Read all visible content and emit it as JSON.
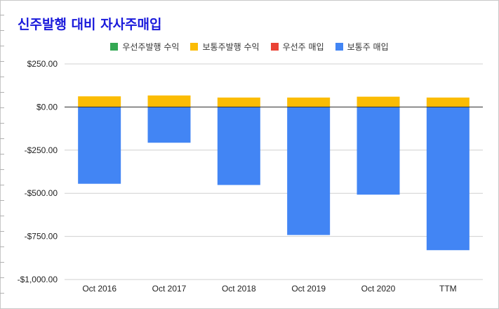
{
  "chart_data": {
    "type": "bar",
    "title": "신주발행 대비 자사주매입",
    "categories": [
      "Oct 2016",
      "Oct 2017",
      "Oct 2018",
      "Oct 2019",
      "Oct 2020",
      "TTM"
    ],
    "series": [
      {
        "name": "우선주발행 수익",
        "color": "#34a853",
        "values": [
          0,
          0,
          0,
          0,
          0,
          0
        ]
      },
      {
        "name": "보통주발행 수익",
        "color": "#fbbc04",
        "values": [
          62,
          67,
          55,
          55,
          60,
          55
        ]
      },
      {
        "name": "우선주 매입",
        "color": "#ea4335",
        "values": [
          0,
          0,
          0,
          0,
          0,
          0
        ]
      },
      {
        "name": "보통주 매입",
        "color": "#4285f4",
        "values": [
          -445,
          -207,
          -452,
          -742,
          -508,
          -830
        ]
      }
    ],
    "y_ticks": [
      250,
      0,
      -250,
      -500,
      -750,
      -1000
    ],
    "y_tick_labels": [
      "$250.00",
      "$0.00",
      "-$250.00",
      "-$500.00",
      "-$750.00",
      "-$1,000.00"
    ],
    "ylim": [
      -1000,
      250
    ],
    "xlabel": "",
    "ylabel": "",
    "stacked": true,
    "grid": true,
    "legend_position": "top"
  }
}
